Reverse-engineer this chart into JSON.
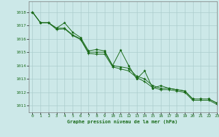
{
  "title": "Graphe pression niveau de la mer (hPa)",
  "background_color": "#cce8e8",
  "grid_color": "#aacccc",
  "line_color": "#1a6b1a",
  "marker_color": "#1a6b1a",
  "xlim": [
    -0.5,
    23
  ],
  "ylim": [
    1010.5,
    1018.8
  ],
  "yticks": [
    1011,
    1012,
    1013,
    1014,
    1015,
    1016,
    1017,
    1018
  ],
  "xticks": [
    0,
    1,
    2,
    3,
    4,
    5,
    6,
    7,
    8,
    9,
    10,
    11,
    12,
    13,
    14,
    15,
    16,
    17,
    18,
    19,
    20,
    21,
    22,
    23
  ],
  "series": [
    [
      1018.0,
      1017.2,
      1017.2,
      1016.8,
      1017.2,
      1016.5,
      1016.1,
      1015.1,
      1015.2,
      1015.1,
      1014.0,
      1015.15,
      1014.0,
      1013.0,
      1013.6,
      1012.3,
      1012.5,
      1012.3,
      1012.2,
      1012.1,
      1011.5,
      1011.5,
      1011.5,
      1011.2
    ],
    [
      1018.0,
      1017.2,
      1017.2,
      1016.8,
      1016.8,
      1016.3,
      1016.0,
      1015.0,
      1015.0,
      1015.0,
      1014.0,
      1013.9,
      1013.8,
      1013.2,
      1013.0,
      1012.5,
      1012.3,
      1012.3,
      1012.2,
      1012.1,
      1011.5,
      1011.5,
      1011.5,
      1011.2
    ],
    [
      1018.0,
      1017.2,
      1017.2,
      1016.7,
      1016.75,
      1016.25,
      1015.95,
      1014.9,
      1014.85,
      1014.85,
      1013.9,
      1013.75,
      1013.6,
      1013.1,
      1012.8,
      1012.35,
      1012.2,
      1012.2,
      1012.1,
      1012.0,
      1011.4,
      1011.4,
      1011.4,
      1011.1
    ]
  ]
}
